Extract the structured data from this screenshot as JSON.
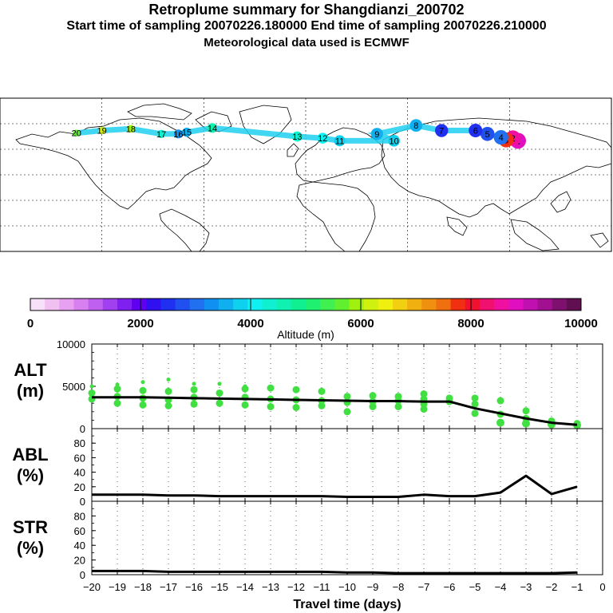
{
  "header": {
    "title": "Retroplume summary for Shangdianzi_200702",
    "line2": "Start time of sampling 20070226.180000     End time of sampling 20070226.210000",
    "line3": "Meteorological data used is ECMWF"
  },
  "chart_data": [
    {
      "type": "map",
      "name": "retroplume-map",
      "description_labels": [
        "1",
        "2",
        "3",
        "4",
        "5",
        "6",
        "7",
        "8",
        "9",
        "10",
        "11",
        "12",
        "13",
        "14",
        "15",
        "16",
        "17",
        "18",
        "19",
        "20"
      ],
      "plume_points": [
        {
          "day": "1",
          "lon": 125,
          "lat": 40,
          "alt": 8800
        },
        {
          "day": "2",
          "lon": 122,
          "lat": 43,
          "alt": 8600
        },
        {
          "day": "3",
          "lon": 118,
          "lat": 41,
          "alt": 7800
        },
        {
          "day": "4",
          "lon": 115,
          "lat": 44,
          "alt": 3000
        },
        {
          "day": "5",
          "lon": 107,
          "lat": 48,
          "alt": 2700
        },
        {
          "day": "6",
          "lon": 100,
          "lat": 52,
          "alt": 2600
        },
        {
          "day": "7",
          "lon": 80,
          "lat": 52,
          "alt": 2500
        },
        {
          "day": "8",
          "lon": 65,
          "lat": 58,
          "alt": 3500
        },
        {
          "day": "9",
          "lon": 42,
          "lat": 48,
          "alt": 3600
        },
        {
          "day": "10",
          "lon": 52,
          "lat": 40,
          "alt": 3800
        },
        {
          "day": "11",
          "lon": 20,
          "lat": 40,
          "alt": 3900
        },
        {
          "day": "12",
          "lon": 10,
          "lat": 43,
          "alt": 4100
        },
        {
          "day": "13",
          "lon": -5,
          "lat": 45,
          "alt": 4300
        },
        {
          "day": "14",
          "lon": -55,
          "lat": 55,
          "alt": 4600
        },
        {
          "day": "15",
          "lon": -70,
          "lat": 50,
          "alt": 3500
        },
        {
          "day": "16",
          "lon": -75,
          "lat": 48,
          "alt": 3200
        },
        {
          "day": "17",
          "lon": -85,
          "lat": 48,
          "alt": 4400
        },
        {
          "day": "18",
          "lon": -103,
          "lat": 54,
          "alt": 5800
        },
        {
          "day": "19",
          "lon": -120,
          "lat": 52,
          "alt": 6200
        },
        {
          "day": "20",
          "lon": -135,
          "lat": 49,
          "alt": 5600
        }
      ]
    },
    {
      "type": "colorbar",
      "name": "altitude-colorbar",
      "xlabel": "Altitude (m)",
      "range": [
        0,
        10000
      ],
      "tick_labels": [
        "0",
        "2000",
        "4000",
        "6000",
        "8000",
        "10000"
      ],
      "colors": [
        "#f8e0f8",
        "#f0c0f0",
        "#e8a0f0",
        "#d880f0",
        "#c060f0",
        "#a040f0",
        "#8020f0",
        "#6000f0",
        "#3010f0",
        "#2030f0",
        "#2050f0",
        "#2070f0",
        "#1090f0",
        "#10b0f0",
        "#10d0f0",
        "#10f0f0",
        "#10f0d0",
        "#10f0b0",
        "#10f090",
        "#20f070",
        "#40f050",
        "#60f030",
        "#a0f010",
        "#d0f010",
        "#f0f010",
        "#f0d010",
        "#f0b010",
        "#f09010",
        "#f07010",
        "#f03010",
        "#f01030",
        "#f01070",
        "#f010a0",
        "#e010c0",
        "#c010b0",
        "#a01090",
        "#801070",
        "#601050"
      ]
    },
    {
      "type": "line",
      "name": "alt-panel",
      "ylabel": "ALT\n(m)",
      "ylabel_lines": [
        "ALT",
        "(m)"
      ],
      "ylim": [
        0,
        10000
      ],
      "yticks": [
        "0",
        "5000",
        "10000"
      ],
      "x": [
        -20,
        -19,
        -18,
        -17,
        -16,
        -15,
        -14,
        -13,
        -12,
        -11,
        -10,
        -9,
        -8,
        -7,
        -6,
        -5,
        -4,
        -3,
        -2,
        -1
      ],
      "values": [
        3700,
        3700,
        3700,
        3650,
        3600,
        3550,
        3500,
        3450,
        3400,
        3350,
        3300,
        3250,
        3250,
        3200,
        3200,
        2400,
        1800,
        1200,
        700,
        450
      ],
      "scatter": [
        {
          "x": -20,
          "y": [
            3500,
            4200,
            5000
          ]
        },
        {
          "x": -19,
          "y": [
            3000,
            3800,
            4700,
            5200
          ]
        },
        {
          "x": -18,
          "y": [
            2800,
            3600,
            4500,
            5500
          ]
        },
        {
          "x": -17,
          "y": [
            2700,
            3400,
            4400,
            5800
          ]
        },
        {
          "x": -16,
          "y": [
            2900,
            3700,
            4600,
            5300
          ]
        },
        {
          "x": -15,
          "y": [
            3000,
            4200,
            5300
          ]
        },
        {
          "x": -14,
          "y": [
            2800,
            3700,
            4700,
            5000
          ]
        },
        {
          "x": -13,
          "y": [
            2600,
            3500,
            4800
          ]
        },
        {
          "x": -12,
          "y": [
            2500,
            3400,
            4600
          ]
        },
        {
          "x": -11,
          "y": [
            2700,
            3300,
            4400
          ]
        },
        {
          "x": -10,
          "y": [
            2000,
            3100,
            3800
          ]
        },
        {
          "x": -9,
          "y": [
            2600,
            3200,
            3900
          ]
        },
        {
          "x": -8,
          "y": [
            2600,
            3300,
            3800
          ]
        },
        {
          "x": -7,
          "y": [
            2300,
            2900,
            3500,
            4100
          ]
        },
        {
          "x": -6,
          "y": [
            3200,
            3600
          ]
        },
        {
          "x": -5,
          "y": [
            1800,
            2900,
            3600
          ]
        },
        {
          "x": -4,
          "y": [
            700,
            1700,
            3300
          ]
        },
        {
          "x": -3,
          "y": [
            600,
            1200,
            2100
          ]
        },
        {
          "x": -2,
          "y": [
            500,
            900
          ]
        },
        {
          "x": -1,
          "y": [
            400,
            600
          ]
        }
      ]
    },
    {
      "type": "line",
      "name": "abl-panel",
      "ylabel_lines": [
        "ABL",
        "(%)"
      ],
      "ylim": [
        0,
        100
      ],
      "yticks": [
        "0",
        "20",
        "40",
        "60",
        "80"
      ],
      "x": [
        -20,
        -19,
        -18,
        -17,
        -16,
        -15,
        -14,
        -13,
        -12,
        -11,
        -10,
        -9,
        -8,
        -7,
        -6,
        -5,
        -4,
        -3,
        -2,
        -1
      ],
      "values": [
        9,
        9,
        9,
        8,
        8,
        7,
        7,
        7,
        7,
        7,
        6,
        6,
        6,
        9,
        7,
        7,
        12,
        35,
        10,
        20
      ]
    },
    {
      "type": "line",
      "name": "str-panel",
      "ylabel_lines": [
        "STR",
        "(%)"
      ],
      "ylim": [
        0,
        100
      ],
      "yticks": [
        "0",
        "20",
        "40",
        "60",
        "80"
      ],
      "x": [
        -20,
        -19,
        -18,
        -17,
        -16,
        -15,
        -14,
        -13,
        -12,
        -11,
        -10,
        -9,
        -8,
        -7,
        -6,
        -5,
        -4,
        -3,
        -2,
        -1
      ],
      "values": [
        5,
        5,
        5,
        4,
        4,
        4,
        4,
        4,
        4,
        4,
        3,
        3,
        2,
        2,
        2,
        2,
        2,
        2,
        2,
        3
      ],
      "xlabel": "Travel time (days)",
      "xtick_labels": [
        "−20",
        "−19",
        "−18",
        "−17",
        "−16",
        "−15",
        "−14",
        "−13",
        "−12",
        "−11",
        "−10",
        "−9",
        "−8",
        "−7",
        "−6",
        "−5",
        "−4",
        "−3",
        "−2",
        "−1",
        "0"
      ]
    }
  ]
}
